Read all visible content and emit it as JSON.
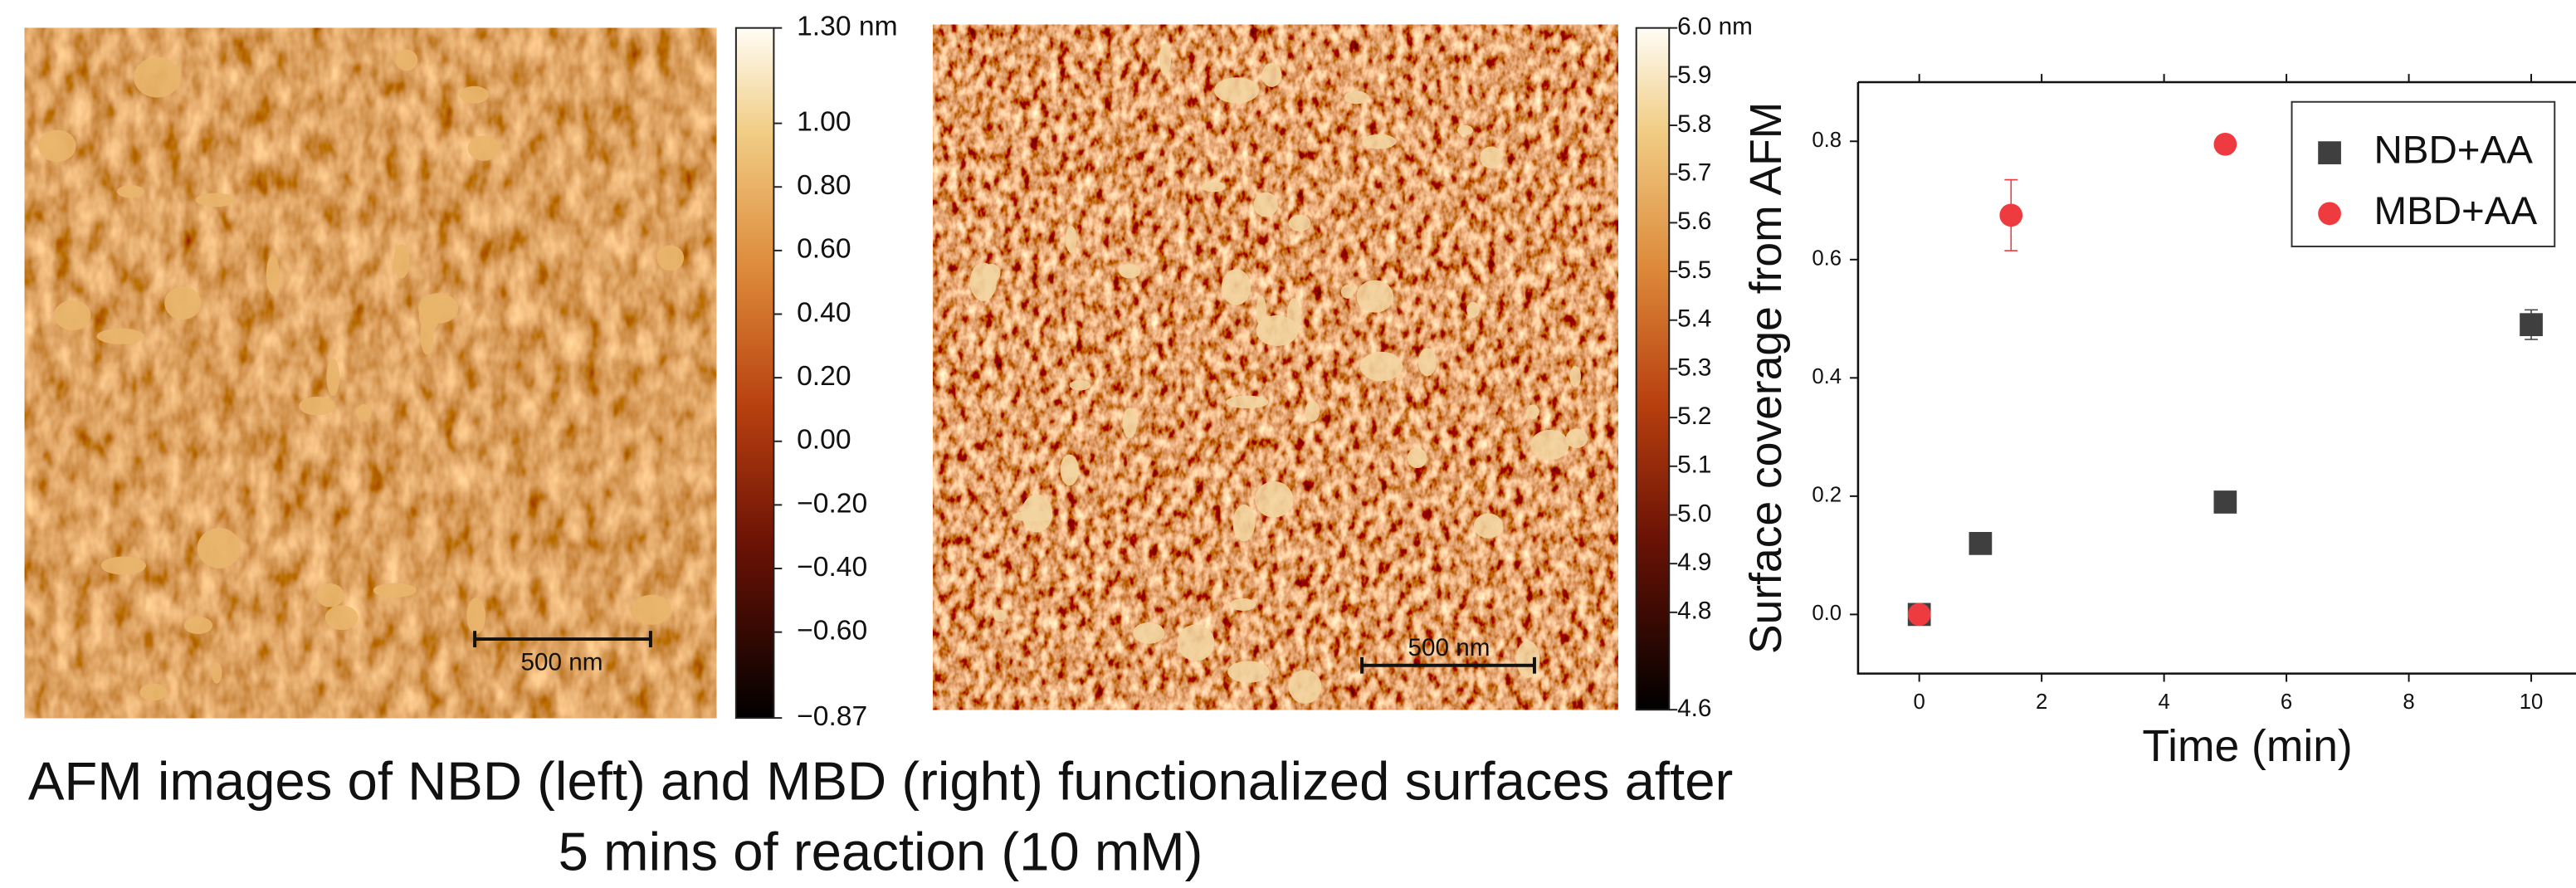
{
  "figure": {
    "caption": [
      "AFM images of NBD (left) and MBD (right) functionalized surfaces after",
      "5 mins of reaction (10 mM)"
    ],
    "panels": [
      {
        "scale_bar": "500 nm",
        "clim": [
          -0.87,
          1.3
        ],
        "colorbar_ticks": [
          {
            "value": 1.3,
            "label": "1.30 nm"
          },
          {
            "value": 1.0,
            "label": "1.00"
          },
          {
            "value": 0.8,
            "label": "0.80"
          },
          {
            "value": 0.6,
            "label": "0.60"
          },
          {
            "value": 0.4,
            "label": "0.40"
          },
          {
            "value": 0.2,
            "label": "0.20"
          },
          {
            "value": 0.0,
            "label": "0.00"
          },
          {
            "value": -0.2,
            "label": "−0.20"
          },
          {
            "value": -0.4,
            "label": "−0.40"
          },
          {
            "value": -0.6,
            "label": "−0.60"
          },
          {
            "value": -0.87,
            "label": "−0.87"
          }
        ]
      },
      {
        "scale_bar": "500 nm",
        "clim": [
          4.6,
          6.0
        ],
        "colorbar_ticks": [
          {
            "value": 6.0,
            "label": "6.0 nm"
          },
          5.9,
          5.8,
          5.7,
          5.6,
          5.5,
          5.4,
          5.3,
          5.2,
          5.1,
          {
            "value": 5.0,
            "label": "5.0"
          },
          4.9,
          4.8,
          4.6
        ]
      }
    ]
  },
  "chart_data": {
    "type": "scatter",
    "xlabel": "Time (min)",
    "ylabel": "Surface coverage from AFM",
    "xlim": [
      -1,
      11
    ],
    "ylim": [
      -0.1,
      0.9
    ],
    "xticks": [
      0,
      2,
      4,
      6,
      8,
      10
    ],
    "yticks": [
      {
        "value": 0,
        "label": "0.0"
      },
      {
        "value": 0.2,
        "label": "0.2"
      },
      {
        "value": 0.4,
        "label": "0.4"
      },
      {
        "value": 0.6,
        "label": "0.6"
      },
      {
        "value": 0.8,
        "label": "0.8"
      }
    ],
    "legend": "upper right",
    "series": [
      {
        "name": "NBD+AA",
        "color": "#3f3f3f",
        "marker": "square",
        "x": [
          0,
          1,
          5,
          10
        ],
        "values": [
          0,
          0.12,
          0.19,
          0.49
        ],
        "errors": [
          0,
          0,
          0,
          0.025
        ]
      },
      {
        "name": "MBD+AA",
        "color": "#ee3b3f",
        "marker": "circle",
        "x": [
          0,
          1.5,
          5
        ],
        "values": [
          0,
          0.675,
          0.795
        ],
        "errors": [
          0,
          0.06,
          0
        ]
      }
    ]
  }
}
